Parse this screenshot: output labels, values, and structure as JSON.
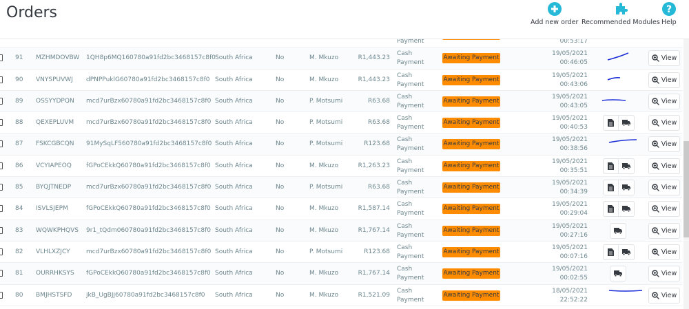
{
  "header": {
    "title": "Orders",
    "toolbar": [
      {
        "label": "Add new order",
        "icon": "plus-circle-icon"
      },
      {
        "label": "Recommended Modules",
        "icon": "puzzle-icon"
      },
      {
        "label": "Help",
        "icon": "help-circle-icon"
      }
    ]
  },
  "colors": {
    "accent": "#25b9d7",
    "badge": "#ff8c00",
    "scribble": "#1a2bd8"
  },
  "partial_row": {
    "payment": "Payment",
    "time": "00:53:17"
  },
  "view_label": "View",
  "orders": [
    {
      "id": "91",
      "ref": "MZHMDOVBW",
      "key": "1QH8p6MQ160780a91fd2bc3468157c8f0",
      "country": "South Africa",
      "new": "No",
      "customer": "M. Mkuzo",
      "total": "R1,443.23",
      "payment1": "Cash",
      "payment2": "Payment",
      "status": "Awaiting Payment",
      "date": "19/05/2021",
      "time": "00:46:05",
      "actions": "scribble"
    },
    {
      "id": "90",
      "ref": "VNYSPUVWJ",
      "key": "dPNPPuklG60780a91fd2bc3468157c8f0",
      "country": "South Africa",
      "new": "No",
      "customer": "M. Mkuzo",
      "total": "R1,443.23",
      "payment1": "Cash",
      "payment2": "Payment",
      "status": "Awaiting Payment",
      "date": "19/05/2021",
      "time": "00:43:06",
      "actions": "scribble"
    },
    {
      "id": "89",
      "ref": "OSSYYDPQN",
      "key": "mcd7urBzx60780a91fd2bc3468157c8f0",
      "country": "South Africa",
      "new": "No",
      "customer": "P. Motsumi",
      "total": "R63.68",
      "payment1": "Cash",
      "payment2": "Payment",
      "status": "Awaiting Payment",
      "date": "19/05/2021",
      "time": "00:43:05",
      "actions": "scribble"
    },
    {
      "id": "88",
      "ref": "QEXEPLUVM",
      "key": "mcd7urBzx60780a91fd2bc3468157c8f0",
      "country": "South Africa",
      "new": "No",
      "customer": "P. Motsumi",
      "total": "R63.68",
      "payment1": "Cash",
      "payment2": "Payment",
      "status": "Awaiting Payment",
      "date": "19/05/2021",
      "time": "00:40:53",
      "actions": "invoice+delivery"
    },
    {
      "id": "87",
      "ref": "FSKCGBCQN",
      "key": "91MySqLF560780a91fd2bc3468157c8f0",
      "country": "South Africa",
      "new": "No",
      "customer": "P. Motsumi",
      "total": "R123.68",
      "payment1": "Cash",
      "payment2": "Payment",
      "status": "Awaiting Payment",
      "date": "19/05/2021",
      "time": "00:38:56",
      "actions": "scribble"
    },
    {
      "id": "86",
      "ref": "VCYIAPEOQ",
      "key": "fGPoCEkkQ60780a91fd2bc3468157c8f0",
      "country": "South Africa",
      "new": "No",
      "customer": "M. Mkuzo",
      "total": "R1,263.23",
      "payment1": "Cash",
      "payment2": "Payment",
      "status": "Awaiting Payment",
      "date": "19/05/2021",
      "time": "00:35:51",
      "actions": "invoice+delivery"
    },
    {
      "id": "85",
      "ref": "BYQJTNEDP",
      "key": "mcd7urBzx60780a91fd2bc3468157c8f0",
      "country": "South Africa",
      "new": "No",
      "customer": "P. Motsumi",
      "total": "R63.68",
      "payment1": "Cash",
      "payment2": "Payment",
      "status": "Awaiting Payment",
      "date": "19/05/2021",
      "time": "00:34:39",
      "actions": "invoice+delivery"
    },
    {
      "id": "84",
      "ref": "ISVLSJEPM",
      "key": "fGPoCEkkQ60780a91fd2bc3468157c8f0",
      "country": "South Africa",
      "new": "No",
      "customer": "M. Mkuzo",
      "total": "R1,587.14",
      "payment1": "Cash",
      "payment2": "Payment",
      "status": "Awaiting Payment",
      "date": "19/05/2021",
      "time": "00:29:04",
      "actions": "invoice+delivery"
    },
    {
      "id": "83",
      "ref": "WQWKPHQVS",
      "key": "9r1_tQdm060780a91fd2bc3468157c8f0",
      "country": "South Africa",
      "new": "No",
      "customer": "M. Mkuzo",
      "total": "R1,767.14",
      "payment1": "Cash",
      "payment2": "Payment",
      "status": "Awaiting Payment",
      "date": "19/05/2021",
      "time": "00:27:16",
      "actions": "delivery"
    },
    {
      "id": "82",
      "ref": "VLHLXZJCY",
      "key": "mcd7urBzx60780a91fd2bc3468157c8f0",
      "country": "South Africa",
      "new": "No",
      "customer": "P. Motsumi",
      "total": "R123.68",
      "payment1": "Cash",
      "payment2": "Payment",
      "status": "Awaiting Payment",
      "date": "19/05/2021",
      "time": "00:07:16",
      "actions": "invoice+delivery"
    },
    {
      "id": "81",
      "ref": "OURRHKSYS",
      "key": "fGPoCEkkQ60780a91fd2bc3468157c8f0",
      "country": "South Africa",
      "new": "No",
      "customer": "M. Mkuzo",
      "total": "R1,767.14",
      "payment1": "Cash",
      "payment2": "Payment",
      "status": "Awaiting Payment",
      "date": "19/05/2021",
      "time": "00:02:55",
      "actions": "delivery"
    },
    {
      "id": "80",
      "ref": "BMJHSTSFD",
      "key": "jkB_UgBJj60780a91fd2bc3468157c8f0",
      "country": "South Africa",
      "new": "No",
      "customer": "M. Mkuzo",
      "total": "R1,521.09",
      "payment1": "Cash",
      "payment2": "Payment",
      "status": "Awaiting Payment",
      "date": "18/05/2021",
      "time": "22:52:22",
      "actions": "scribble"
    }
  ]
}
